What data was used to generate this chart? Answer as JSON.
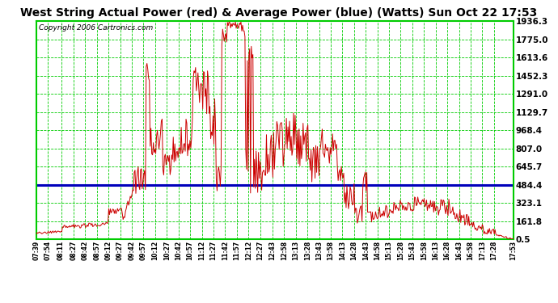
{
  "title": "West String Actual Power (red) & Average Power (blue) (Watts) Sun Oct 22 17:53",
  "copyright": "Copyright 2006 Cartronics.com",
  "average_power": 484.4,
  "y_ticks": [
    0.5,
    161.8,
    323.1,
    484.4,
    645.7,
    807.0,
    968.4,
    1129.7,
    1291.0,
    1452.3,
    1613.6,
    1775.0,
    1936.3
  ],
  "y_min": 0.5,
  "y_max": 1936.3,
  "bg_color": "#ffffff",
  "plot_bg_color": "#ffffff",
  "grid_color": "#00cc00",
  "line_color": "#cc0000",
  "avg_line_color": "#0000bb",
  "x_label_fontsize": 5.5,
  "title_fontsize": 10,
  "copyright_fontsize": 6.5,
  "ytick_fontsize": 7.5,
  "x_tick_labels": [
    "07:39",
    "07:54",
    "08:11",
    "08:27",
    "08:42",
    "08:57",
    "09:12",
    "09:27",
    "09:42",
    "09:57",
    "10:12",
    "10:27",
    "10:42",
    "10:57",
    "11:12",
    "11:27",
    "11:42",
    "11:57",
    "12:12",
    "12:27",
    "12:43",
    "12:58",
    "13:13",
    "13:28",
    "13:43",
    "13:58",
    "14:13",
    "14:28",
    "14:43",
    "14:58",
    "15:13",
    "15:28",
    "15:43",
    "15:58",
    "16:13",
    "16:28",
    "16:43",
    "16:58",
    "17:13",
    "17:28",
    "17:53"
  ]
}
